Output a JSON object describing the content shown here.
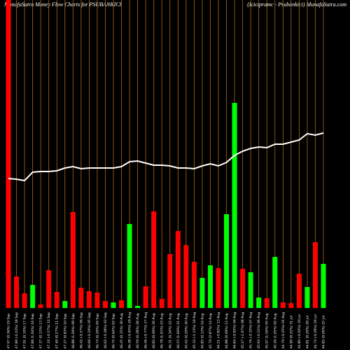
{
  "chart_data": {
    "type": "bar",
    "title": "MunafaSutra  Money Flow  Charts for PSUBANKICI",
    "subtitle": "(Icicipramc -  Psubankici) MunafaSutra.com",
    "categories": [
      "47.97 (0.36%) 19 Sep",
      "47.80 (-0.23%) 18 Sep",
      "47.91 (0.10%) 17 Sep",
      "47.86 (1.04%) 16 Sep",
      "47.37 (0.11%) 13 Sep",
      "47.32 (-0.17%) 12 Sep",
      "47.40 (0.27%) 11 Sep",
      "47.27 (0.83%) 10 Sep",
      "46.88 (1.00%) 09 Sep",
      "46.42 (-0.57%) 06 Sep",
      "46.69 (-0.10%) 05 Sep",
      "46.74 (0.26%) 04 Sep",
      "46.62 (-0.28%) 03 Sep",
      "46.75 (0.64%) 02 Sep",
      "46.45 (0.15%) 30 Aug",
      "46.38 (-0.45%) 29 Aug",
      "46.59 (0.28%) 28 Aug",
      "46.46 (-0.77%) 27 Aug",
      "46.82 (0.09%) 26 Aug",
      "46.78 (1.01%) 23 Aug",
      "46.31 (0.34%) 22 Aug",
      "46.15 (1.60%) 21 Aug",
      "45.42 (0.20%) 20 Aug",
      "45.33 (-1.13%) 19 Aug",
      "45.85 (0.13%) 16 Aug",
      "45.79 (2.87%) 14 Aug",
      "44.51 (-0.82%) 13 Aug",
      "44.88 (0.09%) 12 Aug",
      "44.84 (-0.95%) 09 Aug",
      "45.27 (-1.07%) 08 Aug",
      "45.76 (-0.35%) 07 Aug",
      "45.92 (-0.11%) 06 Aug",
      "45.97 (1.56%) 05 Aug",
      "45.26 (1.05%) 02 Aug",
      "44.79 (-0.25%) 01 Aug",
      "44.90 (0.22%) 31 Jul",
      "44.80 (-0.02%) 30 Jul",
      "44.81 (0.20%) 29 Jul",
      "44.72 (-0.29%) 26 Jul",
      "44.85 (0.00%) 25 Jul"
    ],
    "series": [
      {
        "name": "Money Flow",
        "values": [
          440,
          45,
          21,
          33,
          5,
          54,
          23,
          10,
          137,
          29,
          24,
          22,
          10,
          8,
          11,
          120,
          3,
          31,
          138,
          13,
          77,
          110,
          90,
          66,
          43,
          61,
          57,
          134,
          293,
          56,
          51,
          15,
          14,
          73,
          8,
          7,
          49,
          30,
          94,
          63
        ],
        "colors": [
          "#ff0000",
          "#ff0000",
          "#ff0000",
          "#00ff00",
          "#ff0000",
          "#ff0000",
          "#ff0000",
          "#00ff00",
          "#ff0000",
          "#ff0000",
          "#ff0000",
          "#ff0000",
          "#ff0000",
          "#00ff00",
          "#ff0000",
          "#00ff00",
          "#00ff00",
          "#ff0000",
          "#ff0000",
          "#ff0000",
          "#ff0000",
          "#ff0000",
          "#ff0000",
          "#ff0000",
          "#00ff00",
          "#00ff00",
          "#ff0000",
          "#00ff00",
          "#00ff00",
          "#ff0000",
          "#00ff00",
          "#00ff00",
          "#ff0000",
          "#00ff00",
          "#ff0000",
          "#ff0000",
          "#ff0000",
          "#00ff00",
          "#ff0000",
          "#00ff00"
        ]
      },
      {
        "name": "Price",
        "type": "line",
        "color": "#ffffff",
        "values": [
          185,
          184,
          182,
          194,
          195,
          195,
          196,
          200,
          202,
          199,
          200,
          200,
          200,
          200,
          202,
          209,
          210,
          207,
          204,
          204,
          203,
          200,
          200,
          199,
          203,
          206,
          203,
          208,
          218,
          224,
          228,
          230,
          229,
          234,
          234,
          237,
          240,
          249,
          247,
          250
        ]
      }
    ],
    "ylim": [
      0,
      440
    ],
    "grid_color": "#b8660b"
  }
}
